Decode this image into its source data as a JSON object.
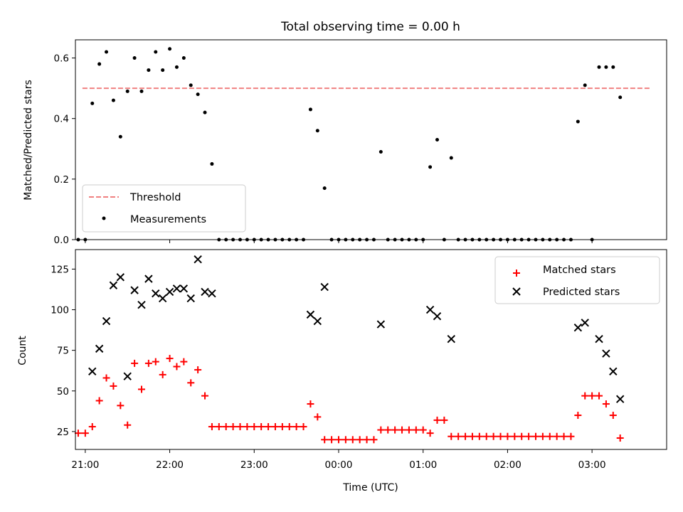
{
  "figure": {
    "title": "Total observing time = 0.00 h"
  },
  "chart_data": [
    {
      "type": "scatter",
      "ylabel": "Matched/Predicted stars",
      "ylim": [
        0,
        0.66
      ],
      "yticks": [
        0.0,
        0.2,
        0.4,
        0.6
      ],
      "ytick_labels": [
        "0.0",
        "0.2",
        "0.4",
        "0.6"
      ],
      "xlim": [
        "20:53",
        "03:53"
      ],
      "threshold": {
        "name": "Threshold",
        "value": 0.5,
        "x": [
          "20:58",
          "03:42"
        ],
        "color": "#f08080",
        "style": "dashed"
      },
      "series": [
        {
          "name": "Measurements",
          "color": "#000000",
          "points": [
            [
              "20:55",
              0.0
            ],
            [
              "21:00",
              0.0
            ],
            [
              "21:05",
              0.45
            ],
            [
              "21:10",
              0.58
            ],
            [
              "21:15",
              0.62
            ],
            [
              "21:20",
              0.46
            ],
            [
              "21:25",
              0.34
            ],
            [
              "21:30",
              0.49
            ],
            [
              "21:35",
              0.6
            ],
            [
              "21:40",
              0.49
            ],
            [
              "21:45",
              0.56
            ],
            [
              "21:50",
              0.62
            ],
            [
              "21:55",
              0.56
            ],
            [
              "22:00",
              0.63
            ],
            [
              "22:05",
              0.57
            ],
            [
              "22:10",
              0.6
            ],
            [
              "22:15",
              0.51
            ],
            [
              "22:20",
              0.48
            ],
            [
              "22:25",
              0.42
            ],
            [
              "22:30",
              0.25
            ],
            [
              "22:35",
              0.0
            ],
            [
              "22:40",
              0.0
            ],
            [
              "22:45",
              0.0
            ],
            [
              "22:50",
              0.0
            ],
            [
              "22:55",
              0.0
            ],
            [
              "23:00",
              0.0
            ],
            [
              "23:05",
              0.0
            ],
            [
              "23:10",
              0.0
            ],
            [
              "23:15",
              0.0
            ],
            [
              "23:20",
              0.0
            ],
            [
              "23:25",
              0.0
            ],
            [
              "23:30",
              0.0
            ],
            [
              "23:35",
              0.0
            ],
            [
              "23:40",
              0.43
            ],
            [
              "23:45",
              0.36
            ],
            [
              "23:50",
              0.17
            ],
            [
              "23:55",
              0.0
            ],
            [
              "00:00",
              0.0
            ],
            [
              "00:05",
              0.0
            ],
            [
              "00:10",
              0.0
            ],
            [
              "00:15",
              0.0
            ],
            [
              "00:20",
              0.0
            ],
            [
              "00:25",
              0.0
            ],
            [
              "00:30",
              0.29
            ],
            [
              "00:35",
              0.0
            ],
            [
              "00:40",
              0.0
            ],
            [
              "00:45",
              0.0
            ],
            [
              "00:50",
              0.0
            ],
            [
              "00:55",
              0.0
            ],
            [
              "01:00",
              0.0
            ],
            [
              "01:05",
              0.24
            ],
            [
              "01:10",
              0.33
            ],
            [
              "01:15",
              0.0
            ],
            [
              "01:20",
              0.27
            ],
            [
              "01:25",
              0.0
            ],
            [
              "01:30",
              0.0
            ],
            [
              "01:35",
              0.0
            ],
            [
              "01:40",
              0.0
            ],
            [
              "01:45",
              0.0
            ],
            [
              "01:50",
              0.0
            ],
            [
              "01:55",
              0.0
            ],
            [
              "02:00",
              0.0
            ],
            [
              "02:05",
              0.0
            ],
            [
              "02:10",
              0.0
            ],
            [
              "02:15",
              0.0
            ],
            [
              "02:20",
              0.0
            ],
            [
              "02:25",
              0.0
            ],
            [
              "02:30",
              0.0
            ],
            [
              "02:35",
              0.0
            ],
            [
              "02:40",
              0.0
            ],
            [
              "02:45",
              0.0
            ],
            [
              "02:50",
              0.39
            ],
            [
              "02:55",
              0.51
            ],
            [
              "03:00",
              0.0
            ],
            [
              "03:05",
              0.57
            ],
            [
              "03:10",
              0.57
            ],
            [
              "03:15",
              0.57
            ],
            [
              "03:20",
              0.47
            ]
          ]
        }
      ],
      "legend": {
        "placement": "lower-left",
        "entries": [
          "Threshold",
          "Measurements"
        ]
      }
    },
    {
      "type": "scatter",
      "xlabel": "Time (UTC)",
      "ylabel": "Count",
      "ylim": [
        14,
        137
      ],
      "yticks": [
        25,
        50,
        75,
        100,
        125
      ],
      "ytick_labels": [
        "25",
        "50",
        "75",
        "100",
        "125"
      ],
      "xlim": [
        "20:53",
        "03:53"
      ],
      "xticks": [
        "21:00",
        "22:00",
        "23:00",
        "00:00",
        "01:00",
        "02:00",
        "03:00"
      ],
      "series": [
        {
          "name": "Matched stars",
          "color": "#ff0000",
          "marker": "plus",
          "points": [
            [
              "20:55",
              24
            ],
            [
              "21:00",
              24
            ],
            [
              "21:05",
              28
            ],
            [
              "21:10",
              44
            ],
            [
              "21:15",
              58
            ],
            [
              "21:20",
              53
            ],
            [
              "21:25",
              41
            ],
            [
              "21:30",
              29
            ],
            [
              "21:35",
              67
            ],
            [
              "21:40",
              51
            ],
            [
              "21:45",
              67
            ],
            [
              "21:50",
              68
            ],
            [
              "21:55",
              60
            ],
            [
              "22:00",
              70
            ],
            [
              "22:05",
              65
            ],
            [
              "22:10",
              68
            ],
            [
              "22:15",
              55
            ],
            [
              "22:20",
              63
            ],
            [
              "22:25",
              47
            ],
            [
              "22:30",
              28
            ],
            [
              "22:35",
              28
            ],
            [
              "22:40",
              28
            ],
            [
              "22:45",
              28
            ],
            [
              "22:50",
              28
            ],
            [
              "22:55",
              28
            ],
            [
              "23:00",
              28
            ],
            [
              "23:05",
              28
            ],
            [
              "23:10",
              28
            ],
            [
              "23:15",
              28
            ],
            [
              "23:20",
              28
            ],
            [
              "23:25",
              28
            ],
            [
              "23:30",
              28
            ],
            [
              "23:35",
              28
            ],
            [
              "23:40",
              42
            ],
            [
              "23:45",
              34
            ],
            [
              "23:50",
              20
            ],
            [
              "23:55",
              20
            ],
            [
              "00:00",
              20
            ],
            [
              "00:05",
              20
            ],
            [
              "00:10",
              20
            ],
            [
              "00:15",
              20
            ],
            [
              "00:20",
              20
            ],
            [
              "00:25",
              20
            ],
            [
              "00:30",
              26
            ],
            [
              "00:35",
              26
            ],
            [
              "00:40",
              26
            ],
            [
              "00:45",
              26
            ],
            [
              "00:50",
              26
            ],
            [
              "00:55",
              26
            ],
            [
              "01:00",
              26
            ],
            [
              "01:05",
              24
            ],
            [
              "01:10",
              32
            ],
            [
              "01:15",
              32
            ],
            [
              "01:20",
              22
            ],
            [
              "01:25",
              22
            ],
            [
              "01:30",
              22
            ],
            [
              "01:35",
              22
            ],
            [
              "01:40",
              22
            ],
            [
              "01:45",
              22
            ],
            [
              "01:50",
              22
            ],
            [
              "01:55",
              22
            ],
            [
              "02:00",
              22
            ],
            [
              "02:05",
              22
            ],
            [
              "02:10",
              22
            ],
            [
              "02:15",
              22
            ],
            [
              "02:20",
              22
            ],
            [
              "02:25",
              22
            ],
            [
              "02:30",
              22
            ],
            [
              "02:35",
              22
            ],
            [
              "02:40",
              22
            ],
            [
              "02:45",
              22
            ],
            [
              "02:50",
              35
            ],
            [
              "02:55",
              47
            ],
            [
              "03:00",
              47
            ],
            [
              "03:05",
              47
            ],
            [
              "03:10",
              42
            ],
            [
              "03:15",
              35
            ],
            [
              "03:20",
              21
            ]
          ]
        },
        {
          "name": "Predicted stars",
          "color": "#000000",
          "marker": "x",
          "points": [
            [
              "21:05",
              62
            ],
            [
              "21:10",
              76
            ],
            [
              "21:15",
              93
            ],
            [
              "21:20",
              115
            ],
            [
              "21:25",
              120
            ],
            [
              "21:30",
              59
            ],
            [
              "21:35",
              112
            ],
            [
              "21:40",
              103
            ],
            [
              "21:45",
              119
            ],
            [
              "21:50",
              110
            ],
            [
              "21:55",
              107
            ],
            [
              "22:00",
              111
            ],
            [
              "22:05",
              113
            ],
            [
              "22:10",
              113
            ],
            [
              "22:15",
              107
            ],
            [
              "22:20",
              131
            ],
            [
              "22:25",
              111
            ],
            [
              "22:30",
              110
            ],
            [
              "23:40",
              97
            ],
            [
              "23:45",
              93
            ],
            [
              "23:50",
              114
            ],
            [
              "00:30",
              91
            ],
            [
              "01:05",
              100
            ],
            [
              "01:10",
              96
            ],
            [
              "01:20",
              82
            ],
            [
              "02:50",
              89
            ],
            [
              "02:55",
              92
            ],
            [
              "03:05",
              82
            ],
            [
              "03:10",
              73
            ],
            [
              "03:15",
              62
            ],
            [
              "03:20",
              45
            ]
          ]
        }
      ],
      "legend": {
        "placement": "top-right",
        "entries": [
          "Matched stars",
          "Predicted stars"
        ]
      }
    }
  ]
}
